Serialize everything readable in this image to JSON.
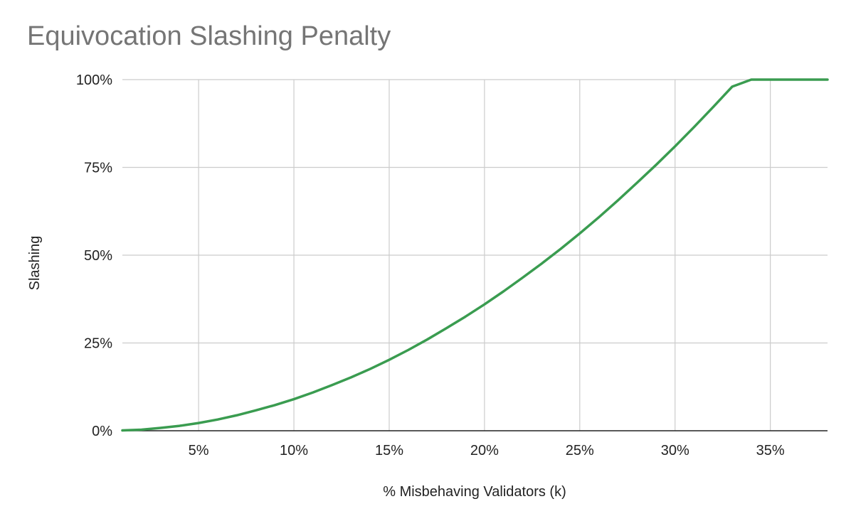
{
  "chart_data": {
    "type": "line",
    "title": "Equivocation Slashing Penalty",
    "xlabel": "% Misbehaving Validators (k)",
    "ylabel": "Slashing",
    "xlim": [
      1,
      38
    ],
    "ylim": [
      0,
      100
    ],
    "x_ticks": [
      {
        "value": 5,
        "label": "5%"
      },
      {
        "value": 10,
        "label": "10%"
      },
      {
        "value": 15,
        "label": "15%"
      },
      {
        "value": 20,
        "label": "20%"
      },
      {
        "value": 25,
        "label": "25%"
      },
      {
        "value": 30,
        "label": "30%"
      },
      {
        "value": 35,
        "label": "35%"
      }
    ],
    "y_ticks": [
      {
        "value": 0,
        "label": "0%"
      },
      {
        "value": 25,
        "label": "25%"
      },
      {
        "value": 50,
        "label": "50%"
      },
      {
        "value": 75,
        "label": "75%"
      },
      {
        "value": 100,
        "label": "100%"
      }
    ],
    "grid": true,
    "line_color": "#3a9c50",
    "grid_color": "#cccccc",
    "axis_color": "#222222",
    "series": [
      {
        "x": [
          1,
          2,
          3,
          4,
          5,
          6,
          7,
          8,
          9,
          10,
          11,
          12,
          13,
          14,
          15,
          16,
          17,
          18,
          19,
          20,
          21,
          22,
          23,
          24,
          25,
          26,
          27,
          28,
          29,
          30,
          31,
          32,
          33,
          34,
          35,
          36,
          37,
          38
        ],
        "values": [
          0.1,
          0.3,
          0.8,
          1.4,
          2.2,
          3.2,
          4.4,
          5.8,
          7.3,
          9.0,
          10.9,
          13.0,
          15.2,
          17.6,
          20.2,
          23.0,
          26.0,
          29.2,
          32.5,
          36.0,
          39.7,
          43.6,
          47.6,
          51.8,
          56.2,
          60.8,
          65.6,
          70.6,
          75.7,
          81.0,
          86.5,
          92.2,
          98.0,
          100,
          100,
          100,
          100,
          100
        ]
      }
    ]
  }
}
